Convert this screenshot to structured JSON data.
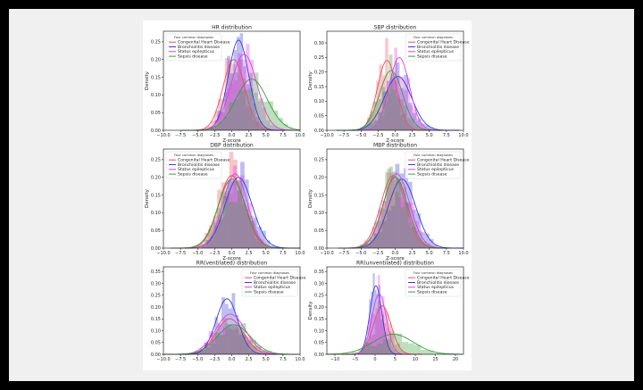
{
  "page": {
    "background": "#000000",
    "frame_color": "#f0f0f0"
  },
  "legend": {
    "title": "Four common diagnoses",
    "items": [
      {
        "name": "Congenital Heart Disease",
        "color": "#f0505a"
      },
      {
        "name": "Bronchiolitis disease",
        "color": "#3b3bd9"
      },
      {
        "name": "Status epilepticus",
        "color": "#e040e0"
      },
      {
        "name": "Sepsis disease",
        "color": "#3a9e3a"
      }
    ]
  },
  "chart_data": [
    {
      "type": "histogram+kde",
      "title": "HR distribution",
      "xlabel": "Z-score",
      "ylabel": "Density",
      "xlim": [
        -10,
        10
      ],
      "xticks": [
        -10,
        -7.5,
        -5,
        -2.5,
        0,
        2.5,
        5,
        7.5,
        10
      ],
      "xtick_labels": [
        "−10.0",
        "−7.5",
        "−5.0",
        "−2.5",
        "0.0",
        "2.5",
        "5.0",
        "7.5",
        "10.0"
      ],
      "ylim": [
        0,
        0.28
      ],
      "yticks": [
        0,
        0.05,
        0.1,
        0.15,
        0.2,
        0.25
      ],
      "ytick_labels": [
        "0.00",
        "0.05",
        "0.10",
        "0.15",
        "0.20",
        "0.25"
      ],
      "legend_position": "top-left",
      "series": [
        {
          "name": "Congenital Heart Disease",
          "color": "#f0505a",
          "mean": 0.3,
          "sd": 1.6,
          "peak": 0.2
        },
        {
          "name": "Bronchiolitis disease",
          "color": "#3b3bd9",
          "mean": 1.0,
          "sd": 1.5,
          "peak": 0.255
        },
        {
          "name": "Status epilepticus",
          "color": "#e040e0",
          "mean": 1.8,
          "sd": 1.9,
          "peak": 0.215
        },
        {
          "name": "Sepsis disease",
          "color": "#3a9e3a",
          "mean": 2.9,
          "sd": 2.3,
          "peak": 0.145
        }
      ]
    },
    {
      "type": "histogram+kde",
      "title": "SBP distribution",
      "xlabel": "Z-score",
      "ylabel": "Density",
      "xlim": [
        -10,
        10
      ],
      "xticks": [
        -10,
        -7.5,
        -5,
        -2.5,
        0,
        2.5,
        5,
        7.5,
        10
      ],
      "xtick_labels": [
        "−10.0",
        "−7.5",
        "−5.0",
        "−2.5",
        "0.0",
        "2.5",
        "5.0",
        "7.5",
        "10.0"
      ],
      "ylim": [
        0,
        0.34
      ],
      "yticks": [
        0,
        0.05,
        0.1,
        0.15,
        0.2,
        0.25,
        0.3
      ],
      "ytick_labels": [
        "0.00",
        "0.05",
        "0.10",
        "0.15",
        "0.20",
        "0.25",
        "0.30"
      ],
      "legend_position": "top-right",
      "series": [
        {
          "name": "Congenital Heart Disease",
          "color": "#f0505a",
          "mean": -1.2,
          "sd": 1.4,
          "peak": 0.24
        },
        {
          "name": "Bronchiolitis disease",
          "color": "#3b3bd9",
          "mean": 0.4,
          "sd": 2.0,
          "peak": 0.185
        },
        {
          "name": "Status epilepticus",
          "color": "#e040e0",
          "mean": 0.6,
          "sd": 1.5,
          "peak": 0.25
        },
        {
          "name": "Sepsis disease",
          "color": "#3a9e3a",
          "mean": -0.6,
          "sd": 1.7,
          "peak": 0.205
        }
      ]
    },
    {
      "type": "histogram+kde",
      "title": "DBP distribution",
      "xlabel": "Z-score",
      "ylabel": "Density",
      "xlim": [
        -10,
        10
      ],
      "xticks": [
        -10,
        -7.5,
        -5,
        -2.5,
        0,
        2.5,
        5,
        7.5,
        10
      ],
      "xtick_labels": [
        "−10.0",
        "−7.5",
        "−5.0",
        "−2.5",
        "0.0",
        "2.5",
        "5.0",
        "7.5",
        "10.0"
      ],
      "ylim": [
        0,
        0.28
      ],
      "yticks": [
        0,
        0.05,
        0.1,
        0.15,
        0.2,
        0.25
      ],
      "ytick_labels": [
        "0.00",
        "0.05",
        "0.10",
        "0.15",
        "0.20",
        "0.25"
      ],
      "legend_position": "top-left",
      "series": [
        {
          "name": "Congenital Heart Disease",
          "color": "#f0505a",
          "mean": 0.0,
          "sd": 1.9,
          "peak": 0.205
        },
        {
          "name": "Bronchiolitis disease",
          "color": "#3b3bd9",
          "mean": 1.0,
          "sd": 2.0,
          "peak": 0.2
        },
        {
          "name": "Status epilepticus",
          "color": "#e040e0",
          "mean": 0.5,
          "sd": 1.8,
          "peak": 0.21
        },
        {
          "name": "Sepsis disease",
          "color": "#3a9e3a",
          "mean": 0.0,
          "sd": 2.0,
          "peak": 0.195
        }
      ]
    },
    {
      "type": "histogram+kde",
      "title": "MBP distribution",
      "xlabel": "Z-score",
      "ylabel": "Density",
      "xlim": [
        -10,
        10
      ],
      "xticks": [
        -10,
        -7.5,
        -5,
        -2.5,
        0,
        2.5,
        5,
        7.5,
        10
      ],
      "xtick_labels": [
        "−10.0",
        "−7.5",
        "−5.0",
        "−2.5",
        "0.0",
        "2.5",
        "5.0",
        "7.5",
        "10.0"
      ],
      "ylim": [
        0,
        0.28
      ],
      "yticks": [
        0,
        0.05,
        0.1,
        0.15,
        0.2,
        0.25
      ],
      "ytick_labels": [
        "0.00",
        "0.05",
        "0.10",
        "0.15",
        "0.20",
        "0.25"
      ],
      "legend_position": "top-right",
      "series": [
        {
          "name": "Congenital Heart Disease",
          "color": "#f0505a",
          "mean": -0.3,
          "sd": 1.8,
          "peak": 0.205
        },
        {
          "name": "Bronchiolitis disease",
          "color": "#3b3bd9",
          "mean": 1.0,
          "sd": 2.0,
          "peak": 0.195
        },
        {
          "name": "Status epilepticus",
          "color": "#e040e0",
          "mean": 0.2,
          "sd": 1.9,
          "peak": 0.21
        },
        {
          "name": "Sepsis disease",
          "color": "#3a9e3a",
          "mean": 0.0,
          "sd": 1.8,
          "peak": 0.2
        }
      ]
    },
    {
      "type": "histogram+kde",
      "title": "RR(ventilated) distribution",
      "xlabel": "",
      "ylabel": "",
      "xlim": [
        -10,
        10
      ],
      "xticks": [
        -10,
        -7.5,
        -5,
        -2.5,
        0,
        2.5,
        5,
        7.5,
        10
      ],
      "xtick_labels": [
        "−10.0",
        "−7.5",
        "−5.0",
        "−2.5",
        "0.0",
        "2.5",
        "5.0",
        "7.5",
        "10.0"
      ],
      "ylim": [
        0,
        0.37
      ],
      "yticks": [
        0,
        0.05,
        0.1,
        0.15,
        0.2,
        0.25,
        0.3,
        0.35
      ],
      "ytick_labels": [
        "0.00",
        "0.05",
        "0.10",
        "0.15",
        "0.20",
        "0.25",
        "0.30",
        "0.35"
      ],
      "legend_position": "top-right",
      "series": [
        {
          "name": "Congenital Heart Disease",
          "color": "#f0505a",
          "mean": -0.3,
          "sd": 2.0,
          "peak": 0.15
        },
        {
          "name": "Bronchiolitis disease",
          "color": "#3b3bd9",
          "mean": -0.7,
          "sd": 1.6,
          "peak": 0.235
        },
        {
          "name": "Status epilepticus",
          "color": "#e040e0",
          "mean": -0.2,
          "sd": 2.2,
          "peak": 0.17
        },
        {
          "name": "Sepsis disease",
          "color": "#3a9e3a",
          "mean": 0.3,
          "sd": 2.4,
          "peak": 0.125
        }
      ]
    },
    {
      "type": "histogram+kde",
      "title": "RR(unventilated) distribution",
      "xlabel": "",
      "ylabel": "Density",
      "xlim": [
        -12,
        22
      ],
      "xticks": [
        -10,
        -5,
        0,
        5,
        10,
        15,
        20
      ],
      "xtick_labels": [
        "−10",
        "−5",
        "0",
        "5",
        "10",
        "15",
        "20"
      ],
      "ylim": [
        0,
        0.37
      ],
      "yticks": [
        0,
        0.05,
        0.1,
        0.15,
        0.2,
        0.25,
        0.3,
        0.35
      ],
      "ytick_labels": [
        "0.00",
        "0.05",
        "0.10",
        "0.15",
        "0.20",
        "0.25",
        "0.30",
        "0.35"
      ],
      "legend_position": "top-right",
      "series": [
        {
          "name": "Congenital Heart Disease",
          "color": "#f0505a",
          "mean": 1.8,
          "sd": 2.2,
          "peak": 0.205
        },
        {
          "name": "Bronchiolitis disease",
          "color": "#3b3bd9",
          "mean": 0.2,
          "sd": 1.5,
          "peak": 0.29
        },
        {
          "name": "Status epilepticus",
          "color": "#e040e0",
          "mean": 1.0,
          "sd": 1.8,
          "peak": 0.255
        },
        {
          "name": "Sepsis disease",
          "color": "#3a9e3a",
          "mean": 4.5,
          "sd": 5.0,
          "peak": 0.085
        }
      ]
    }
  ]
}
